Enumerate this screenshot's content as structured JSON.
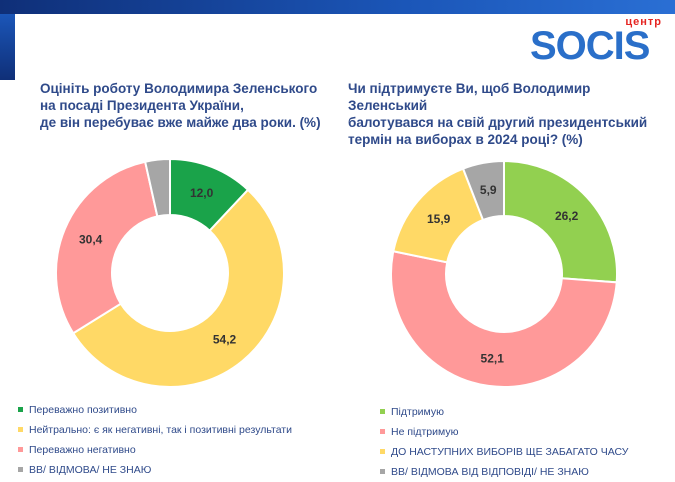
{
  "brand": {
    "centr": "центр",
    "name": "SOCIS"
  },
  "charts": [
    {
      "title": "Оцініть роботу Володимира Зеленського\nна посаді Президента України,\nде він перебуває вже майже два роки. (%)",
      "legend": [
        {
          "label": "Переважно позитивно",
          "color": "#1aa34a"
        },
        {
          "label": "Нейтрально: є як негативні, так і позитивні результати",
          "color": "#ffd966"
        },
        {
          "label": "Переважно негативно",
          "color": "#ff9999"
        },
        {
          "label": "ВВ/ ВІДМОВА/ НЕ ЗНАЮ",
          "color": "#a6a6a6"
        }
      ]
    },
    {
      "title": "Чи підтримуєте Ви, щоб Володимир Зеленський\nбалотувався на свій другий президентський\nтермін на виборах в 2024 році? (%)",
      "legend": [
        {
          "label": "Підтримую",
          "color": "#92d050"
        },
        {
          "label": "Не підтримую",
          "color": "#ff9999"
        },
        {
          "label": "ДО НАСТУПНИХ ВИБОРІВ ЩЕ ЗАБАГАТО ЧАСУ",
          "color": "#ffd966"
        },
        {
          "label": "ВВ/ ВІДМОВА ВІД ВІДПОВІДІ/ НЕ ЗНАЮ",
          "color": "#a6a6a6"
        }
      ]
    }
  ],
  "chart_data": [
    {
      "type": "pie",
      "donut": true,
      "categories": [
        "Переважно позитивно",
        "Нейтрально: є як негативні, так і позитивні результати",
        "Переважно негативно",
        "ВВ/ ВІДМОВА/ НЕ ЗНАЮ"
      ],
      "values": [
        12.0,
        54.2,
        30.4,
        3.5
      ],
      "value_labels": [
        "12,0",
        "54,2",
        "30,4",
        "3,5"
      ],
      "colors": [
        "#1aa34a",
        "#ffd966",
        "#ff9999",
        "#a6a6a6"
      ],
      "legend_position": "bottom"
    },
    {
      "type": "pie",
      "donut": true,
      "categories": [
        "Підтримую",
        "Не підтримую",
        "ДО НАСТУПНИХ ВИБОРІВ ЩЕ ЗАБАГАТО ЧАСУ",
        "ВВ/ ВІДМОВА ВІД ВІДПОВІДІ/ НЕ ЗНАЮ"
      ],
      "values": [
        26.2,
        52.1,
        15.9,
        5.9
      ],
      "value_labels": [
        "26,2",
        "52,1",
        "15,9",
        "5,9"
      ],
      "colors": [
        "#92d050",
        "#ff9999",
        "#ffd966",
        "#a6a6a6"
      ],
      "legend_position": "bottom"
    }
  ]
}
